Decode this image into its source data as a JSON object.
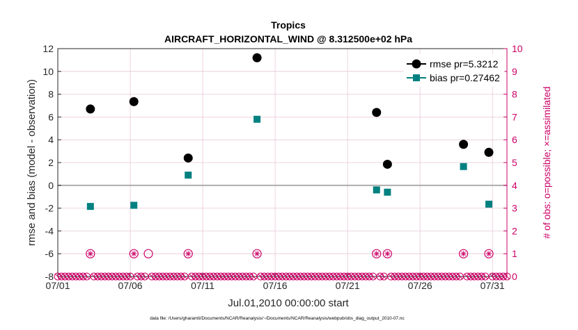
{
  "chart_data": {
    "type": "scatter",
    "title": "Tropics",
    "subtitle": "AIRCRAFT_HORIZONTAL_WIND @ 8.312500e+02 hPa",
    "xlabel": "Jul.01,2010 00:00:00 start",
    "ylabel": "rmse and bias (model - observation)",
    "y2label": "# of obs: o=possible; ×=assimilated",
    "footnote": "data file: /Users/gharamti/Documents/NCAR/Reanalysis/~/Documents/NCAR/Reanalysis/webpub/obs_diag_output_2010-07.nc",
    "xlim": [
      1,
      32
    ],
    "ylim": [
      -8,
      12
    ],
    "y2lim": [
      0,
      10
    ],
    "x_ticks": [
      1,
      6,
      11,
      16,
      21,
      26,
      31
    ],
    "x_tick_labels": [
      "07/01",
      "07/06",
      "07/11",
      "07/16",
      "07/21",
      "07/26",
      "07/31"
    ],
    "y_ticks": [
      -8,
      -6,
      -4,
      -2,
      0,
      2,
      4,
      6,
      8,
      10,
      12
    ],
    "y_tick_labels": [
      "-8",
      "-6",
      "-4",
      "-2",
      "0",
      "2",
      "4",
      "6",
      "8",
      "10",
      "12"
    ],
    "y2_ticks": [
      0,
      1,
      2,
      3,
      4,
      5,
      6,
      7,
      8,
      9,
      10
    ],
    "y2_tick_labels": [
      "0",
      "1",
      "2",
      "3",
      "4",
      "5",
      "6",
      "7",
      "8",
      "9",
      "10"
    ],
    "grid": true,
    "legend_position": "top-right",
    "series": [
      {
        "name": "rmse pr=5.3212",
        "marker": "circle",
        "color": "#000000",
        "x": [
          3.25,
          6.25,
          10.0,
          14.75,
          23.0,
          23.75,
          29.0,
          30.75
        ],
        "values": [
          6.7,
          7.35,
          2.4,
          11.2,
          6.4,
          1.85,
          3.6,
          2.9
        ]
      },
      {
        "name": "bias pr=0.27462",
        "marker": "square",
        "color": "#008080",
        "x": [
          3.25,
          6.25,
          10.0,
          14.75,
          23.0,
          23.75,
          29.0,
          30.75
        ],
        "values": [
          -1.85,
          -1.75,
          0.9,
          5.8,
          -0.4,
          -0.6,
          1.65,
          -1.65
        ]
      }
    ],
    "obs_possible": {
      "name": "possible",
      "color": "#cc0066",
      "x": [
        3.25,
        6.25,
        7.25,
        10.0,
        14.75,
        23.0,
        23.75,
        29.0,
        30.75
      ],
      "values": [
        1,
        1,
        1,
        1,
        1,
        1,
        1,
        1,
        1
      ]
    },
    "obs_assimilated": {
      "name": "assimilated",
      "color": "#cc0066",
      "x": [
        3.25,
        6.25,
        10.0,
        14.75,
        23.0,
        23.75,
        29.0,
        30.75
      ],
      "values": [
        1,
        1,
        1,
        1,
        1,
        1,
        1,
        1
      ]
    },
    "zero_obs_marker_step": 0.25
  }
}
